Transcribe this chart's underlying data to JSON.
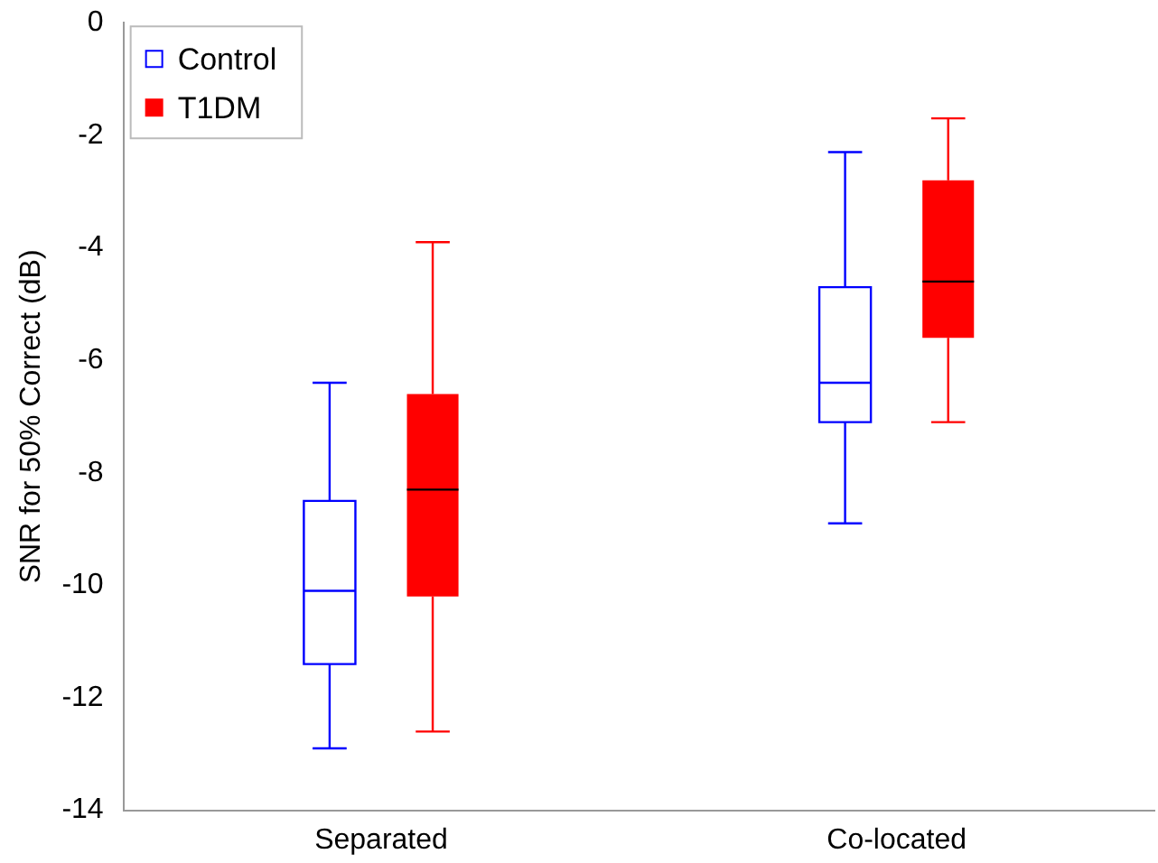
{
  "chart_data": {
    "type": "box",
    "ylabel": "SNR for 50% Correct (dB)",
    "categories": [
      "Separated",
      "Co-located"
    ],
    "series": [
      {
        "name": "Control",
        "color": "#0000ff",
        "boxes": [
          {
            "low": -12.9,
            "q1": -11.4,
            "median": -10.1,
            "q3": -8.5,
            "high": -6.4
          },
          {
            "low": -8.9,
            "q1": -7.1,
            "median": -6.4,
            "q3": -4.7,
            "high": -2.3
          }
        ]
      },
      {
        "name": "T1DM",
        "color": "#ff0000",
        "boxes": [
          {
            "low": -12.6,
            "q1": -10.2,
            "median": -8.3,
            "q3": -6.6,
            "high": -3.9
          },
          {
            "low": -7.1,
            "q1": -5.6,
            "median": -4.6,
            "q3": -2.8,
            "high": -1.7
          }
        ]
      }
    ],
    "ylim": [
      -14,
      0
    ],
    "yticks": [
      -14,
      -12,
      -10,
      -8,
      -6,
      -4,
      -2,
      0
    ],
    "grid": false,
    "legend": "top left"
  }
}
